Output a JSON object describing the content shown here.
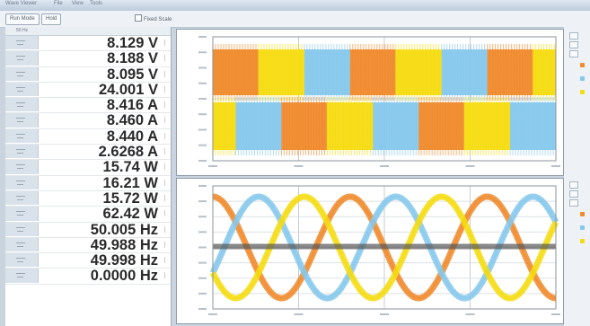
{
  "window": {
    "title": "Wave Viewer",
    "menu": [
      "File",
      "View",
      "Tools"
    ]
  },
  "toolbar": {
    "btn1": "Run Mode",
    "btn2": "Hold",
    "check": "Fixed Scale",
    "selector": "50 Hz"
  },
  "measurements": [
    {
      "value": "8.129 V"
    },
    {
      "value": "8.188 V"
    },
    {
      "value": "8.095 V"
    },
    {
      "value": "24.001 V"
    },
    {
      "value": "8.416 A"
    },
    {
      "value": "8.460 A"
    },
    {
      "value": "8.440 A"
    },
    {
      "value": "2.6268 A"
    },
    {
      "value": "15.74 W"
    },
    {
      "value": "16.21 W"
    },
    {
      "value": "15.72 W"
    },
    {
      "value": "62.42 W"
    },
    {
      "value": "50.005 Hz"
    },
    {
      "value": "49.988 Hz"
    },
    {
      "value": "49.998 Hz"
    },
    {
      "value": "0.0000 Hz"
    }
  ],
  "colors": {
    "phase_a": "#f08a2c",
    "phase_b": "#86c8ec",
    "phase_c": "#f5dc10",
    "neutral": "#555555"
  },
  "chart_data": [
    {
      "type": "line",
      "title": "",
      "description_series": [
        "phase_a",
        "phase_b",
        "phase_c"
      ],
      "periods_shown": 2.5,
      "signal": "pwm_envelope"
    },
    {
      "type": "line",
      "title": "",
      "description_series": [
        "phase_a",
        "phase_b",
        "phase_c",
        "neutral"
      ],
      "periods_shown": 2.5,
      "signal": "sine_three_phase"
    }
  ]
}
